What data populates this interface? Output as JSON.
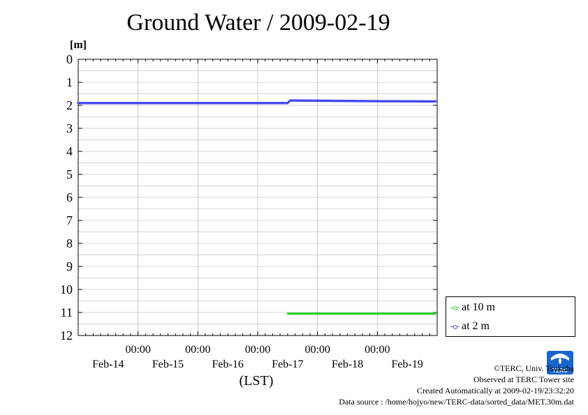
{
  "page": {
    "title": "Ground Water / 2009-02-19",
    "unit_label": "[m]"
  },
  "chart_data": {
    "type": "line",
    "title": "Ground Water / 2009-02-19",
    "ylabel": "[m]",
    "xlabel": "(LST)",
    "y_inverted": true,
    "ylim": [
      0,
      12
    ],
    "yticks": [
      0,
      1,
      2,
      3,
      4,
      5,
      6,
      7,
      8,
      9,
      10,
      11,
      12
    ],
    "xlim": [
      "2009-02-14 00:00",
      "2009-02-20 00:00"
    ],
    "xticks_time": [
      "00:00",
      "00:00",
      "00:00",
      "00:00",
      "00:00"
    ],
    "xticks_date": [
      "Feb-14",
      "Feb-15",
      "Feb-16",
      "Feb-17",
      "Feb-18",
      "Feb-19"
    ],
    "grid": true,
    "legend_position": "bottom-right outside",
    "series": [
      {
        "name": "at 10 m",
        "color": "#33cc33",
        "x": [
          "2009-02-17 12:00",
          "2009-02-18 00:00",
          "2009-02-19 00:00",
          "2009-02-19 23:30"
        ],
        "y": [
          11.05,
          11.05,
          11.05,
          11.05
        ]
      },
      {
        "name": "at 2 m",
        "color": "#4444ee",
        "x": [
          "2009-02-14 00:00",
          "2009-02-15 00:00",
          "2009-02-16 00:00",
          "2009-02-17 12:00",
          "2009-02-17 12:30",
          "2009-02-17 13:00",
          "2009-02-18 00:00",
          "2009-02-19 00:00",
          "2009-02-19 23:30"
        ],
        "y": [
          1.9,
          1.9,
          1.9,
          1.9,
          1.85,
          1.79,
          1.8,
          1.82,
          1.83
        ]
      }
    ]
  },
  "credits": {
    "copyright": "©TERC, Univ. Tsukuba",
    "site": "Observed at TERC Tower site",
    "created": "Created Automatically at 2009-02-19/23:32:20",
    "source": "Data source : /home/hojyo/new/TERC-data/sorted_data/MET.30m.dat"
  },
  "logo": {
    "text": "TERC",
    "color": "#1a66cc"
  }
}
